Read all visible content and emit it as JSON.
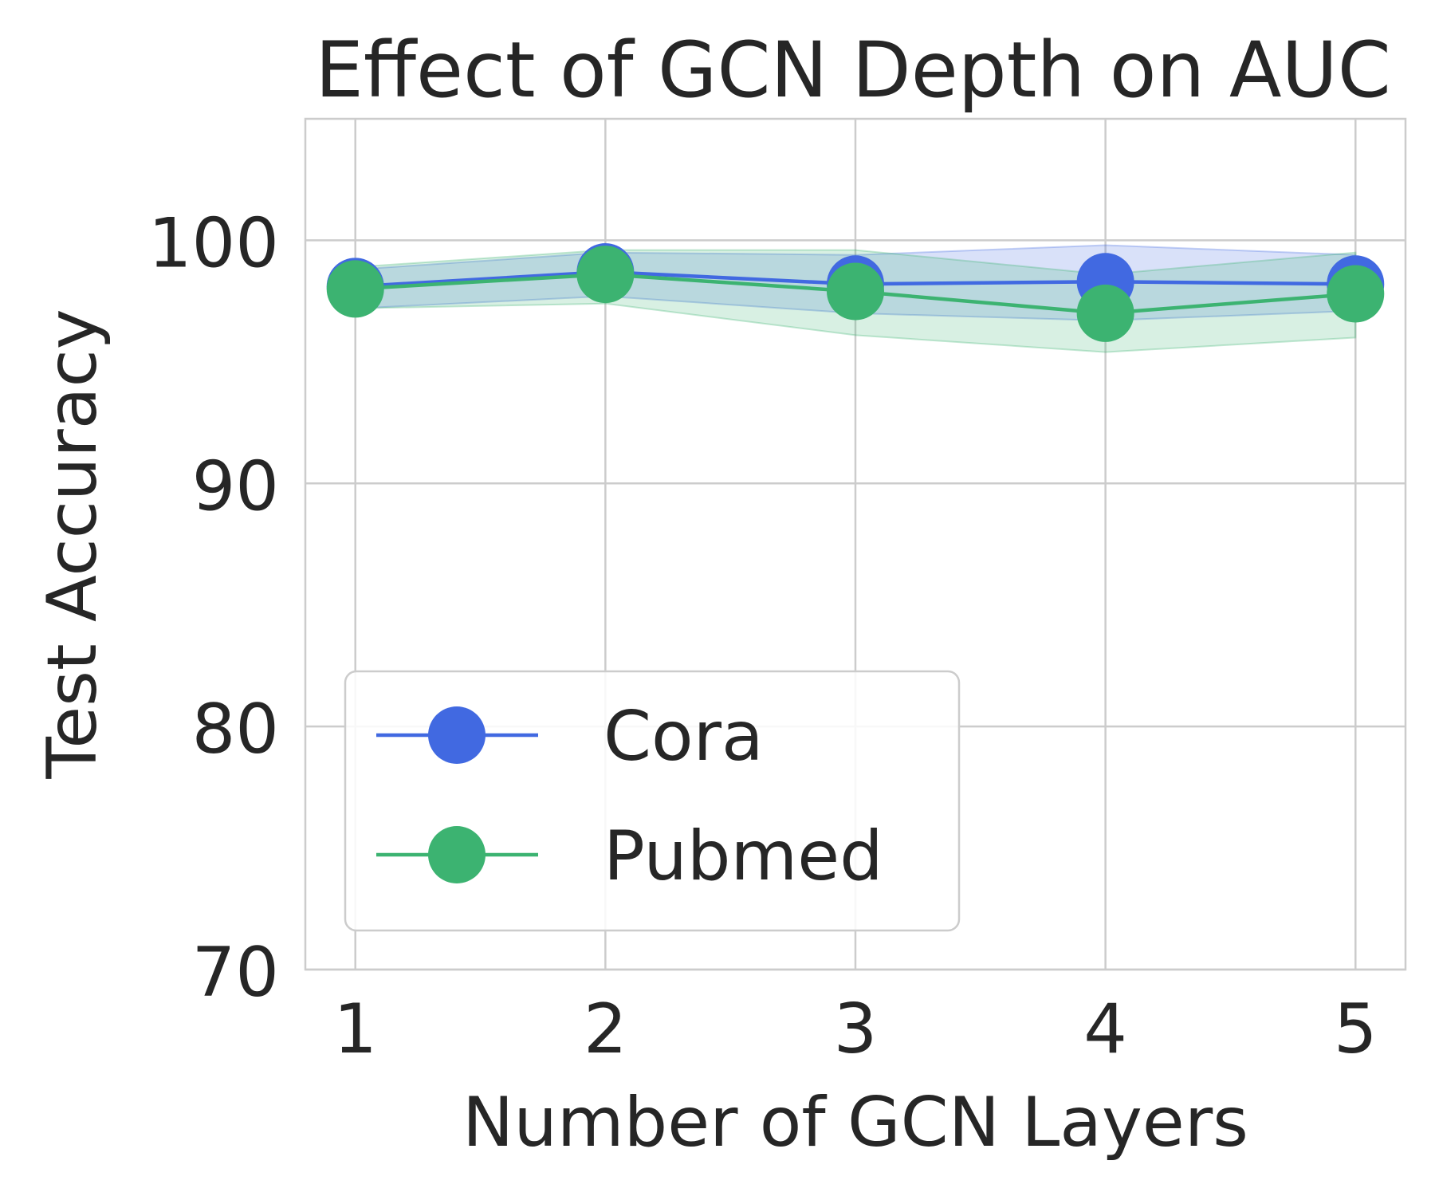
{
  "chart_data": {
    "type": "line",
    "title": "Effect of GCN Depth on AUC",
    "xlabel": "Number of GCN Layers",
    "ylabel": "Test Accuracy",
    "x": [
      1,
      2,
      3,
      4,
      5
    ],
    "xlim": [
      0.8,
      5.2
    ],
    "ylim": [
      70,
      105
    ],
    "yticks": [
      70,
      80,
      90,
      100
    ],
    "grid": true,
    "legend_position": "lower-left",
    "series": [
      {
        "name": "Cora",
        "color": "#4169e1",
        "values": [
          98.1,
          98.7,
          98.2,
          98.3,
          98.2
        ],
        "lower": [
          97.2,
          97.7,
          97.0,
          96.7,
          97.1
        ],
        "upper": [
          98.8,
          99.5,
          99.4,
          99.8,
          99.4
        ]
      },
      {
        "name": "Pubmed",
        "color": "#3cb371",
        "values": [
          98.0,
          98.6,
          97.9,
          97.0,
          97.8
        ],
        "lower": [
          97.2,
          97.4,
          96.1,
          95.4,
          96.0
        ],
        "upper": [
          98.9,
          99.6,
          99.6,
          98.6,
          99.5
        ]
      }
    ]
  }
}
